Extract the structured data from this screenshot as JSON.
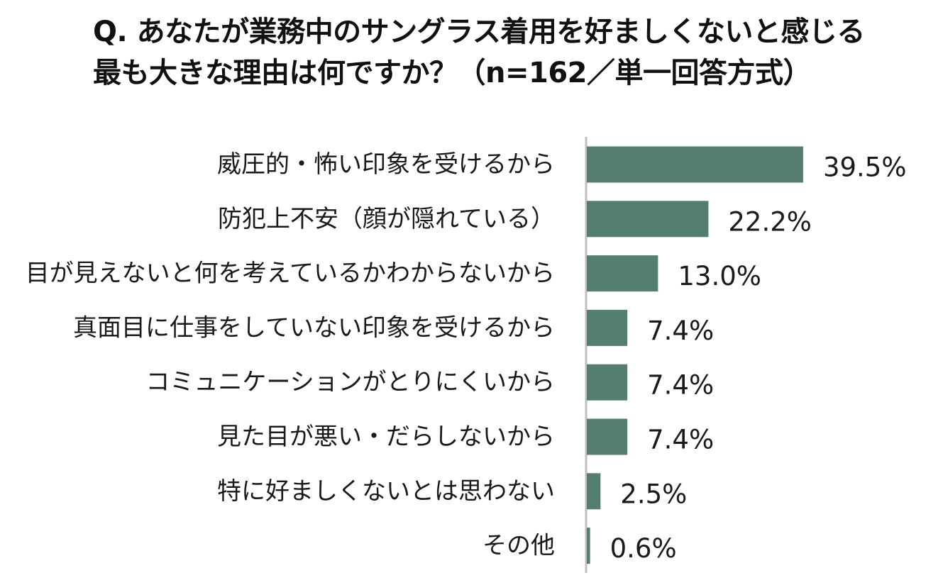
{
  "chart_data": {
    "type": "bar",
    "orientation": "horizontal",
    "title": "Q. あなたが業務中のサングラス着用を好ましくないと感じる最も大きな理由は何ですか？（n=162／単一回答方式）",
    "categories": [
      "威圧的・怖い印象を受けるから",
      "防犯上不安（顔が隠れている）",
      "目が見えないと何を考えているかわからないから",
      "真面目に仕事をしていない印象を受けるから",
      "コミュニケーションがとりにくいから",
      "見た目が悪い・だらしないから",
      "特に好ましくないとは思わない",
      "その他"
    ],
    "values": [
      39.5,
      22.2,
      13.0,
      7.4,
      7.4,
      7.4,
      2.5,
      0.6
    ],
    "value_labels": [
      "39.5%",
      "22.2%",
      "13.0%",
      "7.4%",
      "7.4%",
      "7.4%",
      "2.5%",
      "0.6%"
    ],
    "unit": "%",
    "bar_color": "#547f6f",
    "axis_color": "#bfbfbf",
    "grid": false,
    "legend": "none"
  }
}
